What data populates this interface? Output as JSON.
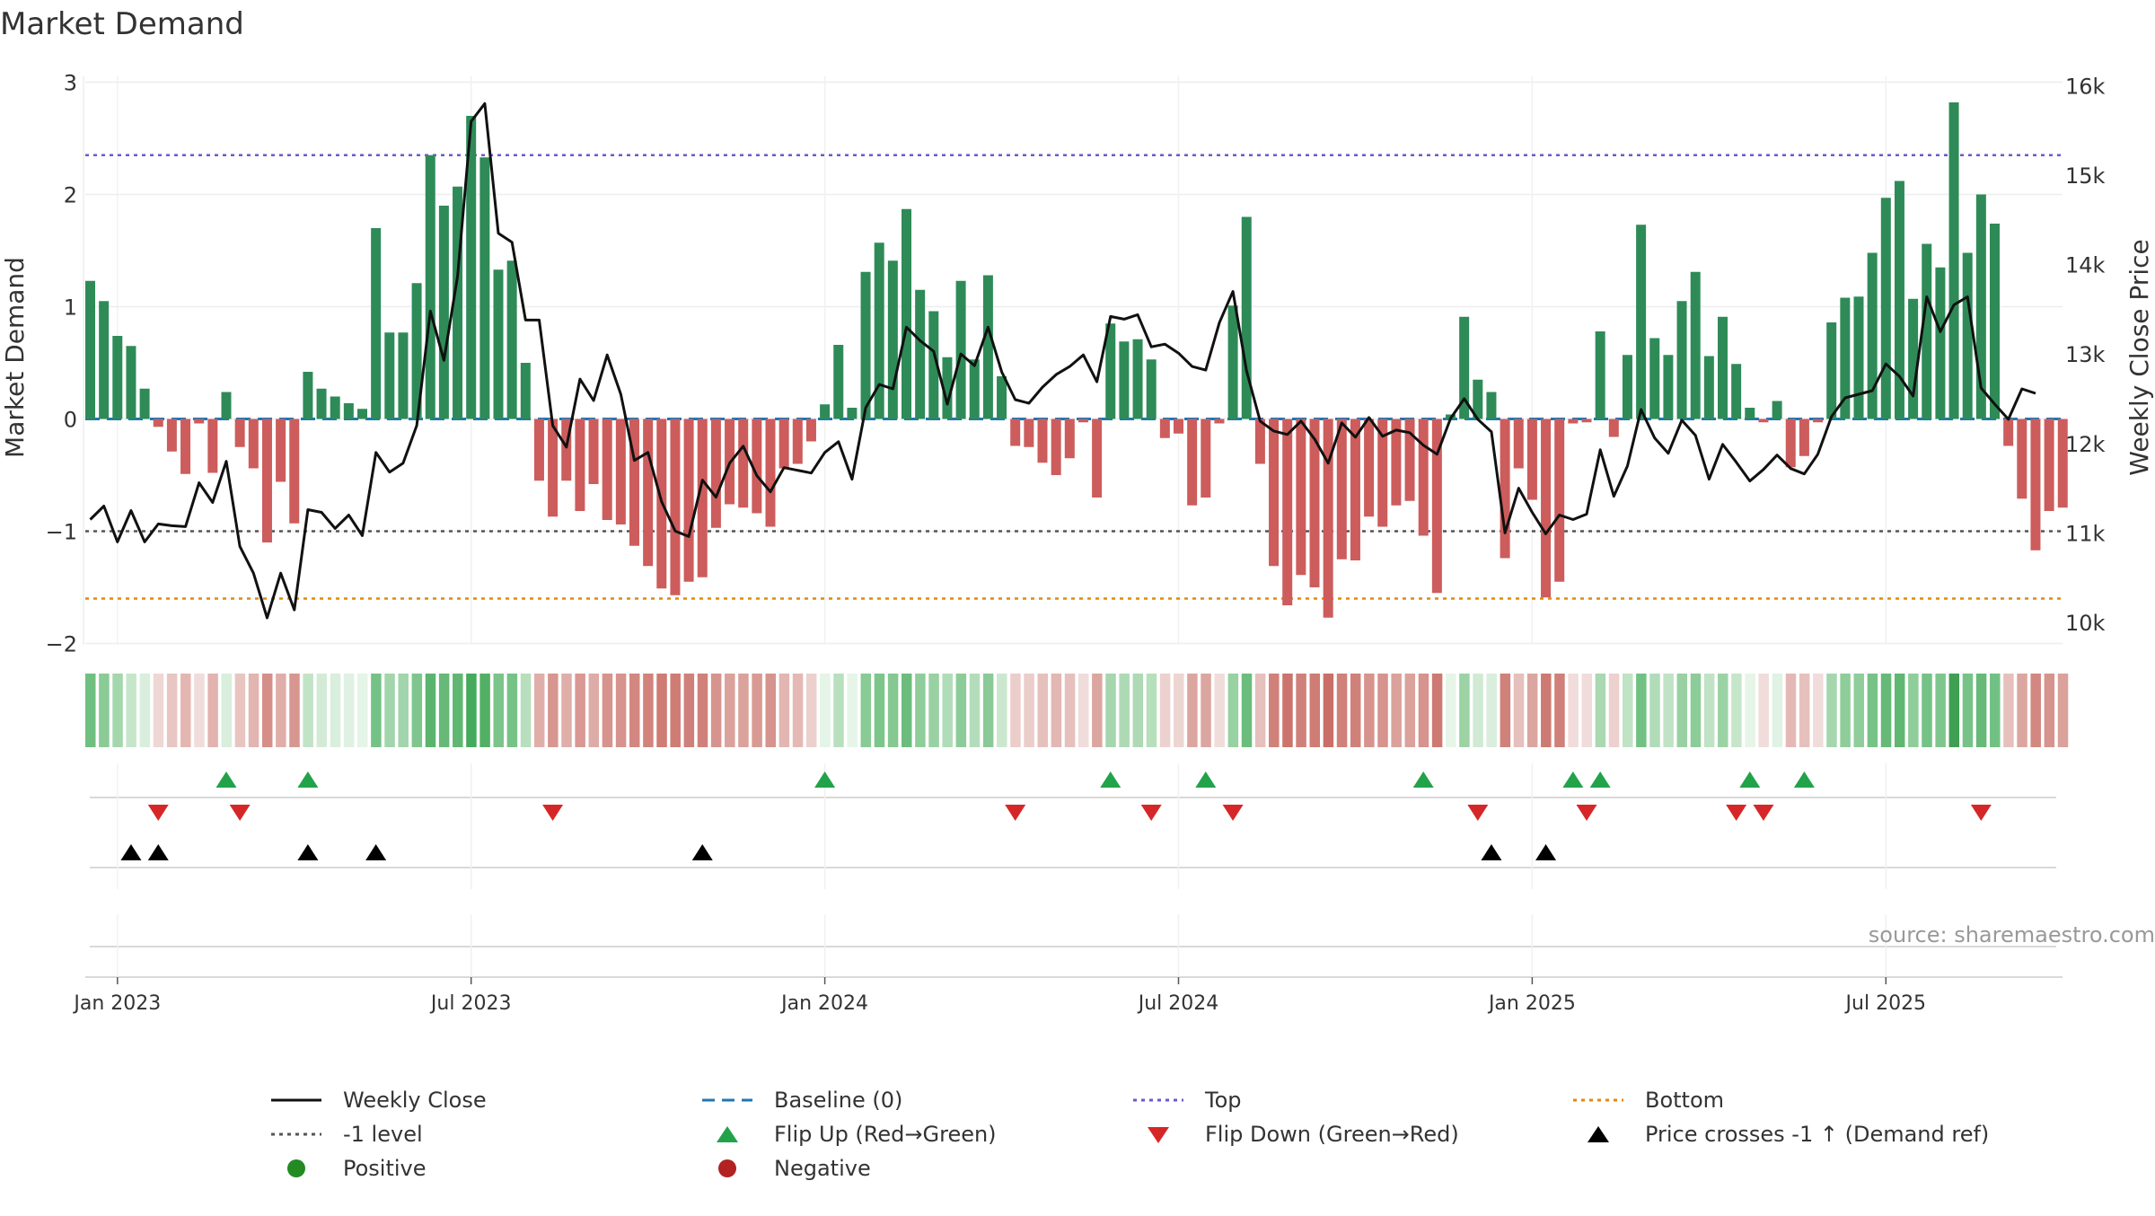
{
  "chart_data": {
    "type": "bar",
    "title": "Market Demand",
    "ylabel": "Market Demand",
    "y2label": "Weekly Close Price",
    "ylim": [
      -2,
      3
    ],
    "y2lim": [
      10000,
      16000
    ],
    "yticks": [
      {
        "value": 3,
        "label": "3"
      },
      {
        "value": 2,
        "label": "2"
      },
      {
        "value": 1,
        "label": "1"
      },
      {
        "value": 0,
        "label": "0"
      },
      {
        "value": -1,
        "label": "−1"
      },
      {
        "value": -2,
        "label": "−2"
      }
    ],
    "y2ticks": [
      {
        "value": 16000,
        "label": "16k"
      },
      {
        "value": 15000,
        "label": "15k"
      },
      {
        "value": 14000,
        "label": "14k"
      },
      {
        "value": 13000,
        "label": "13k"
      },
      {
        "value": 12000,
        "label": "12k"
      },
      {
        "value": 11000,
        "label": "11k"
      },
      {
        "value": 10000,
        "label": "10k"
      }
    ],
    "xticks": [
      {
        "week": 2,
        "label": "Jan 2023"
      },
      {
        "week": 28,
        "label": "Jul 2023"
      },
      {
        "week": 54,
        "label": "Jan 2024"
      },
      {
        "week": 80,
        "label": "Jul 2024"
      },
      {
        "week": 106,
        "label": "Jan 2025"
      },
      {
        "week": 132,
        "label": "Jul 2025"
      }
    ],
    "reference_lines": {
      "top": 2.35,
      "bottom": -1.6,
      "minus_one": -1,
      "baseline": 0
    },
    "demand": [
      1.23,
      1.05,
      0.74,
      0.65,
      0.27,
      -0.07,
      -0.29,
      -0.49,
      -0.04,
      -0.48,
      0.24,
      -0.25,
      -0.44,
      -1.1,
      -0.56,
      -0.93,
      0.42,
      0.27,
      0.2,
      0.14,
      0.09,
      1.7,
      0.77,
      0.77,
      1.21,
      2.35,
      1.9,
      2.07,
      2.7,
      2.33,
      1.33,
      1.41,
      0.5,
      -0.55,
      -0.87,
      -0.55,
      -0.82,
      -0.58,
      -0.9,
      -0.94,
      -1.13,
      -1.31,
      -1.51,
      -1.57,
      -1.45,
      -1.41,
      -0.97,
      -0.76,
      -0.79,
      -0.84,
      -0.96,
      -0.44,
      -0.4,
      -0.2,
      0.13,
      0.66,
      0.1,
      1.31,
      1.57,
      1.41,
      1.87,
      1.15,
      0.96,
      0.55,
      1.23,
      0.53,
      1.28,
      0.38,
      -0.24,
      -0.25,
      -0.39,
      -0.5,
      -0.35,
      -0.03,
      -0.7,
      0.85,
      0.69,
      0.71,
      0.53,
      -0.17,
      -0.13,
      -0.77,
      -0.7,
      -0.04,
      1.01,
      1.8,
      -0.4,
      -1.31,
      -1.66,
      -1.39,
      -1.5,
      -1.77,
      -1.25,
      -1.26,
      -0.87,
      -0.96,
      -0.77,
      -0.73,
      -1.04,
      -1.55,
      0.04,
      0.91,
      0.35,
      0.24,
      -1.24,
      -0.44,
      -0.72,
      -1.59,
      -1.45,
      -0.04,
      -0.03,
      0.78,
      -0.16,
      0.57,
      1.73,
      0.72,
      0.57,
      1.05,
      1.31,
      0.56,
      0.91,
      0.49,
      0.1,
      -0.03,
      0.16,
      -0.43,
      -0.33,
      -0.03,
      0.86,
      1.08,
      1.09,
      1.48,
      1.97,
      2.12,
      1.07,
      1.56,
      1.35,
      2.82,
      1.48,
      2.0,
      1.74,
      -0.24,
      -0.71,
      -1.17,
      -0.82,
      -0.79
    ],
    "close": [
      11150,
      11300,
      10900,
      11250,
      10900,
      11100,
      11080,
      11070,
      11560,
      11340,
      11800,
      10850,
      10550,
      10050,
      10550,
      10140,
      11260,
      11230,
      11050,
      11200,
      10970,
      11900,
      11680,
      11780,
      12200,
      13480,
      12930,
      13870,
      15600,
      15800,
      14350,
      14250,
      13380,
      13380,
      12200,
      11960,
      12720,
      12480,
      12990,
      12550,
      11810,
      11900,
      11350,
      11020,
      10960,
      11590,
      11400,
      11780,
      11970,
      11640,
      11460,
      11730,
      11700,
      11670,
      11900,
      12020,
      11600,
      12400,
      12660,
      12610,
      13300,
      13150,
      13030,
      12440,
      13000,
      12870,
      13300,
      12800,
      12490,
      12450,
      12630,
      12770,
      12860,
      12990,
      12690,
      13420,
      13390,
      13440,
      13080,
      13110,
      13010,
      12860,
      12820,
      13350,
      13700,
      12810,
      12250,
      12140,
      12100,
      12250,
      12050,
      11780,
      12230,
      12070,
      12290,
      12080,
      12150,
      12120,
      11980,
      11880,
      12280,
      12500,
      12270,
      12130,
      11000,
      11500,
      11230,
      10990,
      11200,
      11150,
      11210,
      11930,
      11410,
      11750,
      12380,
      12060,
      11890,
      12260,
      12090,
      11600,
      11990,
      11790,
      11580,
      11710,
      11870,
      11720,
      11660,
      11880,
      12300,
      12510,
      12550,
      12590,
      12890,
      12750,
      12530,
      13640,
      13250,
      13550,
      13640,
      12620,
      12440,
      12270,
      12610,
      12560
    ],
    "strip_colors": [
      "#6fbf80",
      "#8acb96",
      "#a5d7ad",
      "#c6e6ca",
      "#d9eedc",
      "#eed7d5",
      "#e8c6c3",
      "#e3b6b2",
      "#f0dcda",
      "#e2b3af",
      "#d9eedc",
      "#e8c5c1",
      "#e2b5b0",
      "#d58f88",
      "#e0aea9",
      "#d89690",
      "#c2e4c6",
      "#d3ebd6",
      "#d9eedc",
      "#dff1e2",
      "#e4f4e6",
      "#74c286",
      "#a2d5ab",
      "#a2d5ab",
      "#7ec68d",
      "#5bb46e",
      "#66b977",
      "#5fb772",
      "#45aa5b",
      "#52b064",
      "#7bc48a",
      "#77c387",
      "#b7dfbd",
      "#e0aea9",
      "#d89690",
      "#e0aea9",
      "#d99893",
      "#deaca7",
      "#d7938d",
      "#d7938d",
      "#d38781",
      "#d1837c",
      "#ce7c74",
      "#ce7c74",
      "#d0807a",
      "#d0817a",
      "#d7938d",
      "#dba19b",
      "#dba19b",
      "#d99a94",
      "#d7938d",
      "#e3b6b2",
      "#e4b9b5",
      "#ecd0cd",
      "#e4f4e6",
      "#b8e0be",
      "#e6f5e8",
      "#89ca95",
      "#7cc58b",
      "#85c891",
      "#6cbd7d",
      "#8fcd9a",
      "#99d1a3",
      "#b1dcb8",
      "#8ccc98",
      "#b3ddba",
      "#89ca96",
      "#cbe8cf",
      "#ebcdca",
      "#ebcdca",
      "#e6c0bc",
      "#e3b7b3",
      "#e6c0bc",
      "#f0dcda",
      "#dca6a0",
      "#a5d6ae",
      "#aed9b5",
      "#aed9b5",
      "#b6dfbc",
      "#ecd1ce",
      "#edd5d2",
      "#dca6a0",
      "#dca6a0",
      "#f0dcda",
      "#98d1a2",
      "#6cbd7d",
      "#e6c0bc",
      "#d0817a",
      "#cb736c",
      "#d0807a",
      "#ce7c74",
      "#ca6f68",
      "#d0817a",
      "#d0817a",
      "#d7938d",
      "#d7938d",
      "#dba19b",
      "#dba19b",
      "#d7938d",
      "#cd7a73",
      "#e6f5e8",
      "#9cd3a5",
      "#d0ead4",
      "#d9eedc",
      "#d0817a",
      "#e6c0bc",
      "#dca6a0",
      "#cd7a73",
      "#d0807a",
      "#f0dcda",
      "#f0dcda",
      "#a9d8b1",
      "#ecd1ce",
      "#c0e3c5",
      "#72c184",
      "#b1dcb8",
      "#c0e3c5",
      "#99d1a3",
      "#8ccc98",
      "#c0e3c5",
      "#9cd3a5",
      "#c5e6c9",
      "#e6f5e8",
      "#f0dcda",
      "#e0f2e3",
      "#e4b9b5",
      "#e6c0bc",
      "#f0dcda",
      "#a5d6ae",
      "#8fcd9a",
      "#8fcd9a",
      "#77c387",
      "#66b977",
      "#5fb772",
      "#8fcd9a",
      "#74c286",
      "#7ec68d",
      "#3f9f52",
      "#77c387",
      "#66b977",
      "#72c184",
      "#e6c0bc",
      "#dca6a0",
      "#d38781",
      "#d7938d",
      "#dba19b"
    ],
    "flip_up": [
      10,
      16,
      54,
      75,
      82,
      98,
      109,
      111,
      122,
      126
    ],
    "flip_down": [
      5,
      11,
      34,
      68,
      78,
      84,
      102,
      110,
      121,
      123,
      139
    ],
    "price_cross": [
      3,
      5,
      16,
      21,
      45,
      103,
      107
    ],
    "watermark": "source: sharemaestro.com"
  },
  "legend": [
    {
      "label": "Weekly Close",
      "symbol": "solid-line",
      "color": "#111111"
    },
    {
      "label": "Baseline (0)",
      "symbol": "dashed-line",
      "color": "#1f77b4"
    },
    {
      "label": "Top",
      "symbol": "dotted-line",
      "color": "#6a5acd"
    },
    {
      "label": "Bottom",
      "symbol": "dotted-line",
      "color": "#e08a0b"
    },
    {
      "label": "-1 level",
      "symbol": "dotted-line",
      "color": "#555555"
    },
    {
      "label": "Flip Up (Red→Green)",
      "symbol": "triangle-up",
      "color": "#22a34a"
    },
    {
      "label": "Flip Down (Green→Red)",
      "symbol": "triangle-down",
      "color": "#d62728"
    },
    {
      "label": "Price crosses -1 ↑ (Demand ref)",
      "symbol": "triangle-up",
      "color": "#000000"
    },
    {
      "label": "Positive",
      "symbol": "circle",
      "color": "#228b22"
    },
    {
      "label": "Negative",
      "symbol": "circle",
      "color": "#b22222"
    }
  ],
  "colors": {
    "positive_bar": "#2e8b57",
    "negative_bar": "#cd5c5c",
    "close_line": "#111111",
    "grid": "#eeeeee"
  }
}
